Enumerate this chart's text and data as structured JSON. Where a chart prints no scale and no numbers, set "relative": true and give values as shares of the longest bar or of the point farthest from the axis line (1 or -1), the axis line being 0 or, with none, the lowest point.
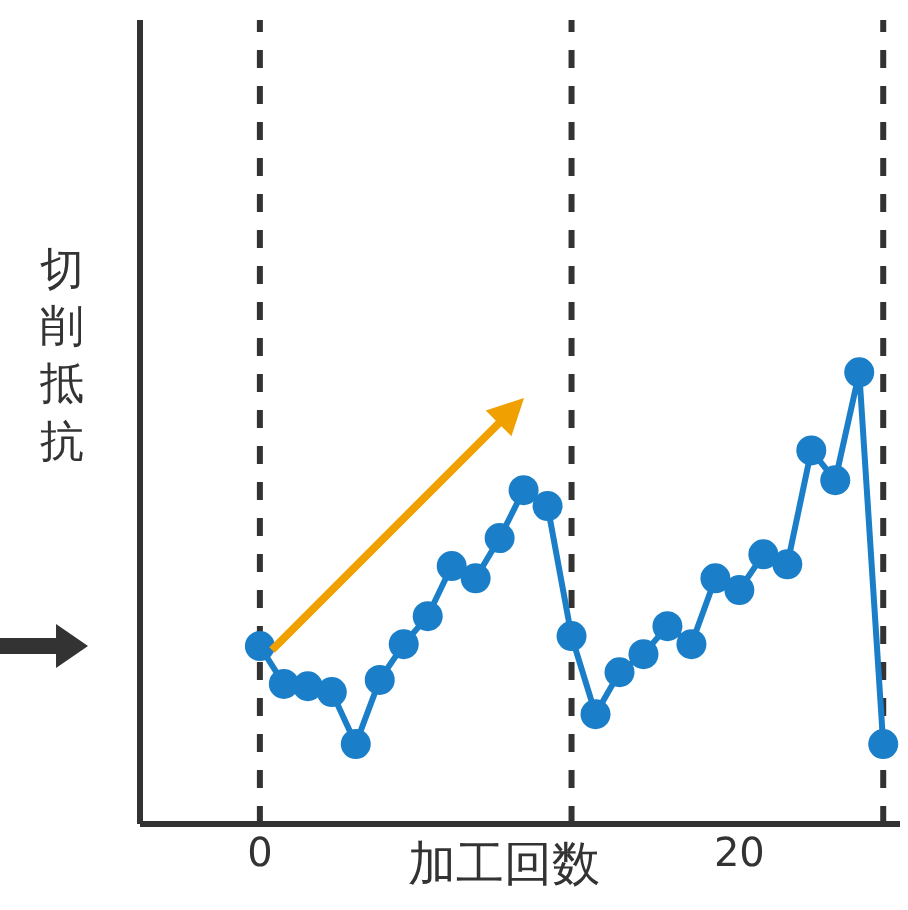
{
  "chart_data": {
    "type": "line",
    "xlabel": "加工回数",
    "ylabel": "切削抵抗",
    "relative": true,
    "x": [
      0,
      1,
      2,
      3,
      4,
      5,
      6,
      7,
      8,
      9,
      10,
      11,
      12,
      13,
      14,
      15,
      16,
      17,
      18,
      19,
      20,
      21,
      22,
      23,
      24,
      25,
      26
    ],
    "series": [
      {
        "color": "#1a7fc8",
        "values": [
          0.394,
          0.31,
          0.305,
          0.292,
          0.177,
          0.319,
          0.398,
          0.46,
          0.571,
          0.544,
          0.633,
          0.739,
          0.704,
          0.416,
          0.243,
          0.336,
          0.376,
          0.438,
          0.398,
          0.544,
          0.518,
          0.597,
          0.575,
          0.827,
          0.761,
          1,
          0.177
        ]
      }
    ],
    "xlim": [
      -5,
      26.7
    ],
    "xticks": [
      0,
      20
    ],
    "tick_labels": "x",
    "marker": "circle",
    "line_style": "solid",
    "grid": false,
    "ref_lines": [
      {
        "axis": "x",
        "value": 0,
        "color": "#333333",
        "line_style": "dashed"
      },
      {
        "axis": "x",
        "value": 13,
        "color": "#333333",
        "line_style": "dashed"
      },
      {
        "axis": "x",
        "value": 26,
        "color": "#333333",
        "line_style": "dashed"
      }
    ]
  }
}
